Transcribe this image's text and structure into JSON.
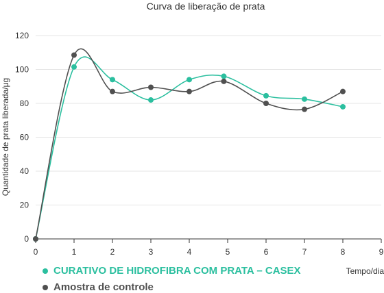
{
  "chart_data": {
    "type": "line",
    "title": "Curva de liberação de prata",
    "xlabel": "Tempo/dia",
    "ylabel": "Quantidade de prata liberada/μg",
    "xlim": [
      0,
      9
    ],
    "ylim": [
      0,
      120
    ],
    "xticks": [
      "0",
      "1",
      "2",
      "3",
      "4",
      "5",
      "6",
      "7",
      "8",
      "9"
    ],
    "yticks": [
      "0",
      "20",
      "40",
      "60",
      "80",
      "100",
      "120"
    ],
    "grid": "horizontal",
    "legend_position": "bottom-left",
    "series": [
      {
        "name": "CURATIVO DE HIDROFIBRA COM PRATA – CASEX",
        "color": "#2bbf9f",
        "x": [
          0,
          1,
          2,
          3,
          4,
          4.9,
          6,
          7,
          8
        ],
        "values": [
          0,
          101.5,
          94,
          82,
          94,
          96,
          84.5,
          82.5,
          78
        ]
      },
      {
        "name": "Amostra de controle",
        "color": "#505050",
        "x": [
          0,
          1,
          2,
          3,
          4,
          4.9,
          6,
          7,
          8
        ],
        "values": [
          0,
          108.5,
          87,
          89.5,
          87,
          93,
          80,
          76.5,
          87
        ]
      }
    ]
  }
}
